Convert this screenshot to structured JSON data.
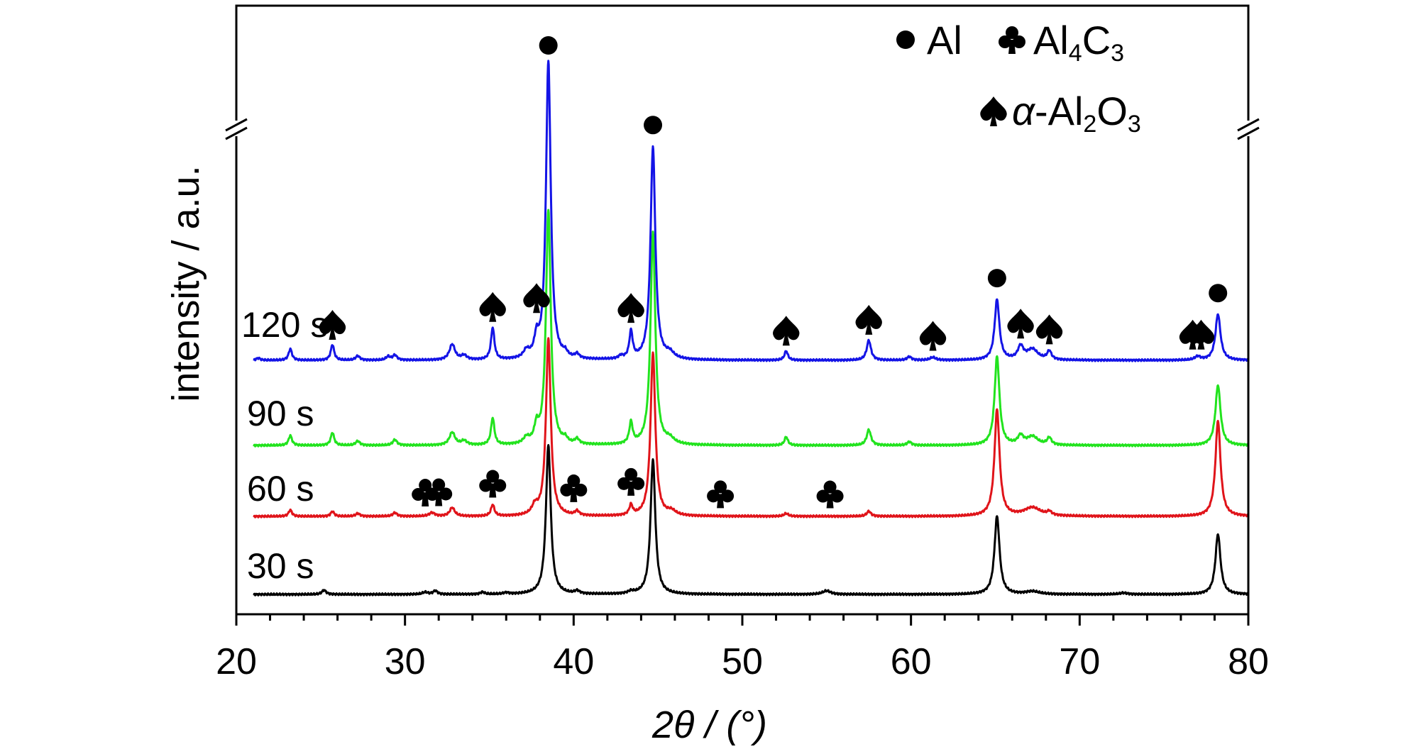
{
  "chart_data": {
    "type": "line",
    "xlabel": "2θ / (°)",
    "ylabel": "intensity / a.u.",
    "xlim": [
      20,
      80
    ],
    "xticks": [
      "20",
      "30",
      "40",
      "50",
      "60",
      "70",
      "80"
    ],
    "y_axis_break": true,
    "legend": {
      "placement": "top-right",
      "entries": [
        {
          "symbol": "circle",
          "label": "Al"
        },
        {
          "symbol": "club",
          "label_main": "Al",
          "sub1": "4",
          "label_mid": "C",
          "sub2": "3"
        },
        {
          "symbol": "spade",
          "label_greek": "α",
          "label_main": "-Al",
          "sub1": "2",
          "label_mid": "O",
          "sub2": "3"
        }
      ]
    },
    "series": [
      {
        "name": "30 s",
        "color": "#000000",
        "baseline": 0,
        "peaks": [
          [
            25.2,
            6,
            0.15
          ],
          [
            31.2,
            3,
            0.2
          ],
          [
            31.8,
            5,
            0.15
          ],
          [
            34.6,
            3,
            0.15
          ],
          [
            36.0,
            2,
            0.2
          ],
          [
            38.5,
            210,
            0.17
          ],
          [
            40.2,
            4,
            0.18
          ],
          [
            43.4,
            3,
            0.2
          ],
          [
            44.7,
            190,
            0.17
          ],
          [
            55.0,
            5,
            0.3
          ],
          [
            65.1,
            110,
            0.18
          ],
          [
            67.2,
            4,
            0.5
          ],
          [
            72.6,
            2,
            0.3
          ],
          [
            78.2,
            85,
            0.18
          ]
        ]
      },
      {
        "name": "60 s",
        "color": "#e0141a",
        "baseline": 110,
        "peaks": [
          [
            23.2,
            9,
            0.12
          ],
          [
            25.7,
            7,
            0.12
          ],
          [
            27.2,
            4,
            0.15
          ],
          [
            29.4,
            5,
            0.15
          ],
          [
            31.6,
            5,
            0.2
          ],
          [
            32.8,
            12,
            0.18
          ],
          [
            35.2,
            16,
            0.12
          ],
          [
            37.7,
            12,
            0.2
          ],
          [
            38.5,
            250,
            0.17
          ],
          [
            40.2,
            6,
            0.15
          ],
          [
            43.4,
            14,
            0.12
          ],
          [
            44.7,
            230,
            0.17
          ],
          [
            45.8,
            6,
            0.3
          ],
          [
            52.6,
            4,
            0.15
          ],
          [
            57.5,
            7,
            0.15
          ],
          [
            65.1,
            150,
            0.18
          ],
          [
            67.2,
            12,
            0.6
          ],
          [
            68.2,
            5,
            0.15
          ],
          [
            78.2,
            135,
            0.18
          ]
        ]
      },
      {
        "name": "90 s",
        "color": "#22e31e",
        "baseline": 210,
        "peaks": [
          [
            23.2,
            14,
            0.12
          ],
          [
            25.7,
            18,
            0.12
          ],
          [
            27.2,
            6,
            0.15
          ],
          [
            29.4,
            8,
            0.15
          ],
          [
            32.8,
            18,
            0.2
          ],
          [
            33.5,
            6,
            0.2
          ],
          [
            35.2,
            38,
            0.12
          ],
          [
            37.2,
            8,
            0.2
          ],
          [
            37.8,
            22,
            0.15
          ],
          [
            38.5,
            330,
            0.17
          ],
          [
            39.5,
            6,
            0.15
          ],
          [
            40.2,
            7,
            0.15
          ],
          [
            43.4,
            30,
            0.12
          ],
          [
            44.7,
            300,
            0.17
          ],
          [
            45.7,
            7,
            0.3
          ],
          [
            52.6,
            12,
            0.12
          ],
          [
            57.5,
            22,
            0.15
          ],
          [
            59.9,
            5,
            0.15
          ],
          [
            65.1,
            125,
            0.17
          ],
          [
            66.5,
            12,
            0.2
          ],
          [
            67.2,
            12,
            0.4
          ],
          [
            68.2,
            10,
            0.15
          ],
          [
            78.2,
            85,
            0.18
          ]
        ]
      },
      {
        "name": "120 s",
        "color": "#1414e6",
        "baseline": 330,
        "peaks": [
          [
            21.3,
            3,
            0.15
          ],
          [
            23.2,
            16,
            0.12
          ],
          [
            25.7,
            22,
            0.12
          ],
          [
            27.2,
            6,
            0.15
          ],
          [
            29.0,
            5,
            0.15
          ],
          [
            29.4,
            7,
            0.15
          ],
          [
            32.8,
            22,
            0.2
          ],
          [
            33.5,
            6,
            0.2
          ],
          [
            35.2,
            45,
            0.12
          ],
          [
            37.2,
            10,
            0.2
          ],
          [
            37.8,
            25,
            0.15
          ],
          [
            38.5,
            420,
            0.17
          ],
          [
            39.5,
            6,
            0.15
          ],
          [
            40.2,
            6,
            0.15
          ],
          [
            42.8,
            4,
            0.15
          ],
          [
            43.4,
            38,
            0.12
          ],
          [
            44.7,
            300,
            0.17
          ],
          [
            45.7,
            8,
            0.3
          ],
          [
            52.6,
            13,
            0.12
          ],
          [
            57.5,
            28,
            0.15
          ],
          [
            59.9,
            5,
            0.15
          ],
          [
            61.3,
            4,
            0.2
          ],
          [
            65.1,
            85,
            0.17
          ],
          [
            66.5,
            18,
            0.2
          ],
          [
            67.2,
            15,
            0.4
          ],
          [
            68.2,
            12,
            0.15
          ],
          [
            77.0,
            5,
            0.2
          ],
          [
            78.2,
            65,
            0.18
          ]
        ]
      }
    ],
    "annotations": [
      {
        "symbol": "circle",
        "x": 38.5,
        "series": "120 s"
      },
      {
        "symbol": "circle",
        "x": 44.7,
        "series": "120 s"
      },
      {
        "symbol": "circle",
        "x": 65.1,
        "series": "120 s"
      },
      {
        "symbol": "circle",
        "x": 78.2,
        "series": "120 s"
      },
      {
        "symbol": "spade",
        "x": 25.7,
        "series": "120 s"
      },
      {
        "symbol": "spade",
        "x": 35.2,
        "series": "120 s"
      },
      {
        "symbol": "spade",
        "x": 37.8,
        "series": "120 s"
      },
      {
        "symbol": "spade",
        "x": 43.4,
        "series": "120 s"
      },
      {
        "symbol": "spade",
        "x": 52.6,
        "series": "120 s"
      },
      {
        "symbol": "spade",
        "x": 57.5,
        "series": "120 s"
      },
      {
        "symbol": "spade",
        "x": 61.3,
        "series": "120 s"
      },
      {
        "symbol": "spade",
        "x": 66.5,
        "series": "120 s"
      },
      {
        "symbol": "spade",
        "x": 68.2,
        "series": "120 s"
      },
      {
        "symbol": "spade",
        "x": 76.7,
        "series": "120 s"
      },
      {
        "symbol": "spade",
        "x": 77.2,
        "series": "120 s"
      },
      {
        "symbol": "club",
        "x": 31.2,
        "series": "60 s"
      },
      {
        "symbol": "club",
        "x": 32.0,
        "series": "60 s"
      },
      {
        "symbol": "club",
        "x": 35.2,
        "series": "60 s"
      },
      {
        "symbol": "club",
        "x": 40.0,
        "series": "60 s"
      },
      {
        "symbol": "club",
        "x": 43.4,
        "series": "60 s"
      },
      {
        "symbol": "club",
        "x": 48.7,
        "series": "60 s"
      },
      {
        "symbol": "club",
        "x": 55.2,
        "series": "60 s"
      }
    ]
  }
}
